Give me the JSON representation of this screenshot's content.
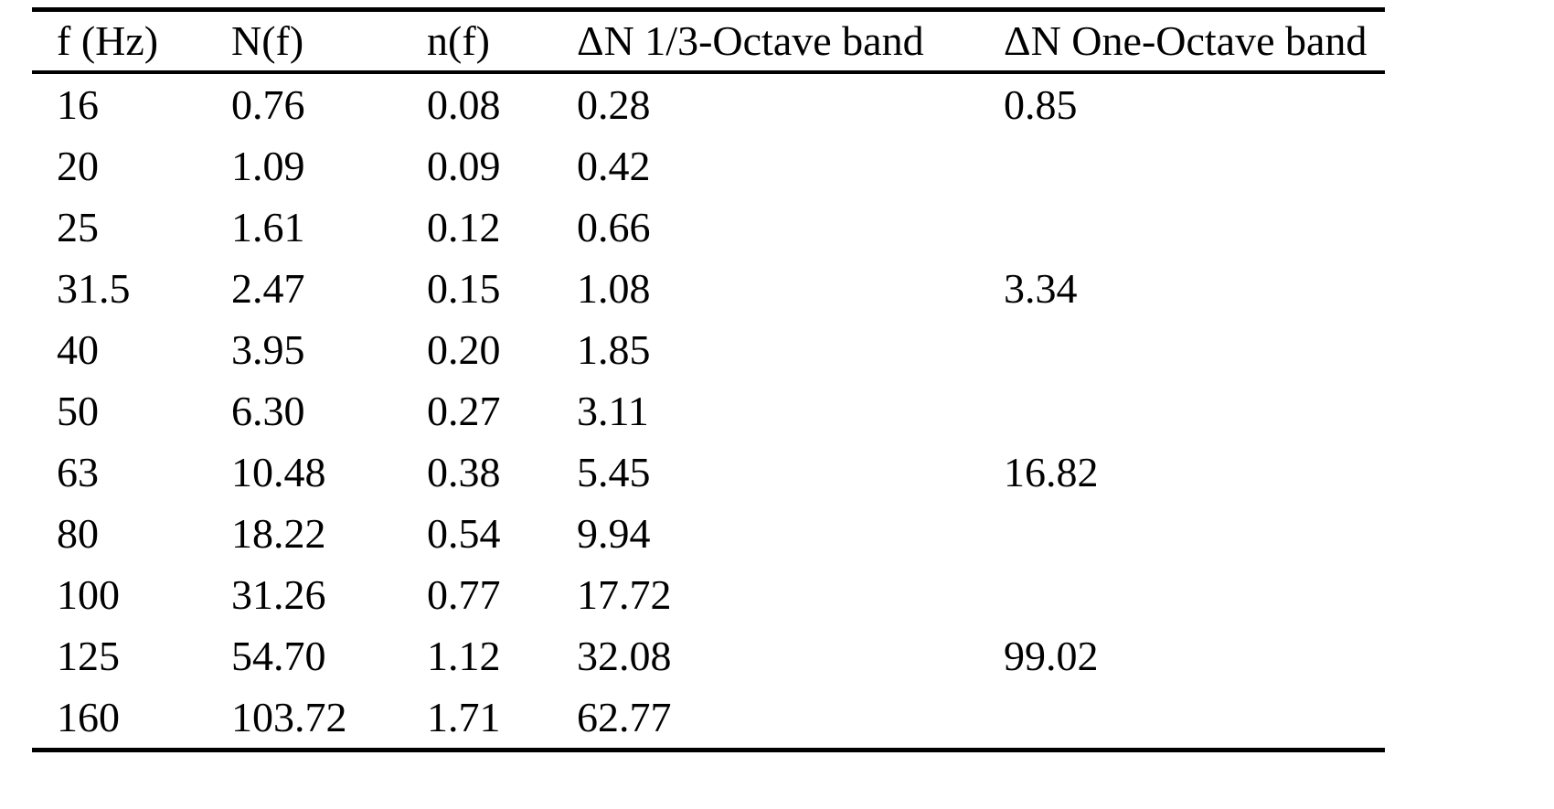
{
  "document": {
    "kind": "scanned-paper-table",
    "colors": {
      "background": "#ffffff",
      "text": "#000000",
      "rule": "#000000"
    }
  },
  "table": {
    "columns": [
      "f (Hz)",
      "N(f)",
      "n(f)",
      "ΔN 1/3-Octave band",
      "ΔN One-Octave band"
    ],
    "rows": [
      [
        "16",
        "0.76",
        "0.08",
        "0.28",
        "0.85"
      ],
      [
        "20",
        "1.09",
        "0.09",
        "0.42",
        ""
      ],
      [
        "25",
        "1.61",
        "0.12",
        "0.66",
        ""
      ],
      [
        "31.5",
        "2.47",
        "0.15",
        "1.08",
        "3.34"
      ],
      [
        "40",
        "3.95",
        "0.20",
        "1.85",
        ""
      ],
      [
        "50",
        "6.30",
        "0.27",
        "3.11",
        ""
      ],
      [
        "63",
        "10.48",
        "0.38",
        "5.45",
        "16.82"
      ],
      [
        "80",
        "18.22",
        "0.54",
        "9.94",
        ""
      ],
      [
        "100",
        "31.26",
        "0.77",
        "17.72",
        ""
      ],
      [
        "125",
        "54.70",
        "1.12",
        "32.08",
        "99.02"
      ],
      [
        "160",
        "103.72",
        "1.71",
        "62.77",
        ""
      ]
    ]
  },
  "chart_data": {
    "type": "table",
    "title": "",
    "columns": [
      "f (Hz)",
      "N(f)",
      "n(f)",
      "ΔN 1/3-Octave band",
      "ΔN One-Octave band"
    ],
    "f_hz": [
      16,
      20,
      25,
      31.5,
      40,
      50,
      63,
      80,
      100,
      125,
      160
    ],
    "N_f": [
      0.76,
      1.09,
      1.61,
      2.47,
      3.95,
      6.3,
      10.48,
      18.22,
      31.26,
      54.7,
      103.72
    ],
    "n_f": [
      0.08,
      0.09,
      0.12,
      0.15,
      0.2,
      0.27,
      0.38,
      0.54,
      0.77,
      1.12,
      1.71
    ],
    "dN_third_octave": [
      0.28,
      0.42,
      0.66,
      1.08,
      1.85,
      3.11,
      5.45,
      9.94,
      17.72,
      32.08,
      62.77
    ],
    "dN_one_octave": {
      "16": 0.85,
      "31.5": 3.34,
      "63": 16.82,
      "125": 99.02
    }
  }
}
